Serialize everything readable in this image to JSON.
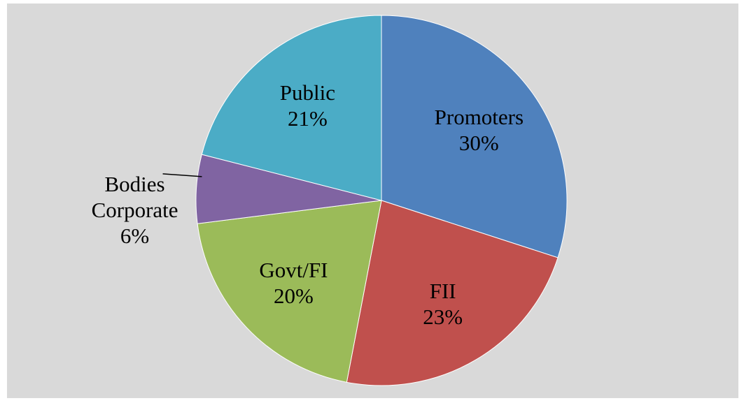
{
  "chart_data": {
    "type": "pie",
    "categories": [
      "Promoters",
      "FII",
      "Govt/FI",
      "Bodies Corporate",
      "Public"
    ],
    "values": [
      30,
      23,
      20,
      6,
      21
    ],
    "value_labels": [
      "30%",
      "23%",
      "20%",
      "6%",
      "21%"
    ],
    "colors": [
      "#4f81bd",
      "#c0504d",
      "#9bbb59",
      "#8064a2",
      "#4bacc6"
    ]
  }
}
